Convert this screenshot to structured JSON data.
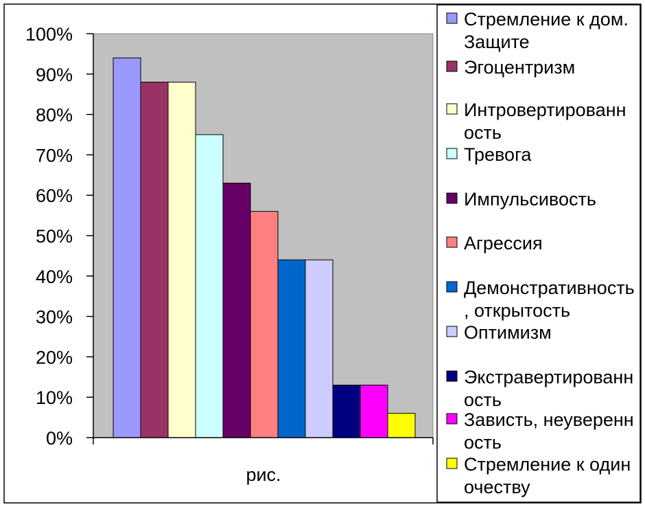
{
  "chart_data": {
    "type": "bar",
    "categories": [
      "рис."
    ],
    "ylim": [
      0,
      1
    ],
    "yticks": [
      "0%",
      "10%",
      "20%",
      "30%",
      "40%",
      "50%",
      "60%",
      "70%",
      "80%",
      "90%",
      "100%"
    ],
    "plot_background": "#c0c0c0",
    "legend_position": "right",
    "grid": false,
    "series": [
      {
        "name": "Стремление к дом. Защите",
        "color": "#9999ff",
        "values": [
          0.94
        ]
      },
      {
        "name": "Эгоцентризм",
        "color": "#993366",
        "values": [
          0.88
        ]
      },
      {
        "name": "Интровертированность",
        "color": "#ffffcc",
        "values": [
          0.88
        ]
      },
      {
        "name": "Тревога",
        "color": "#ccffff",
        "values": [
          0.75
        ]
      },
      {
        "name": "Импульсивость",
        "color": "#660066",
        "values": [
          0.63
        ]
      },
      {
        "name": "Агрессия",
        "color": "#ff8080",
        "values": [
          0.56
        ]
      },
      {
        "name": "Демонстративность, открытость",
        "color": "#0066cc",
        "values": [
          0.44
        ]
      },
      {
        "name": "Оптимизм",
        "color": "#ccccff",
        "values": [
          0.44
        ]
      },
      {
        "name": "Экстравертированность",
        "color": "#000080",
        "values": [
          0.13
        ]
      },
      {
        "name": "Зависть, неуверенность",
        "color": "#ff00ff",
        "values": [
          0.13
        ]
      },
      {
        "name": "Стремление к одиночеству",
        "color": "#ffff00",
        "values": [
          0.06
        ]
      }
    ]
  }
}
